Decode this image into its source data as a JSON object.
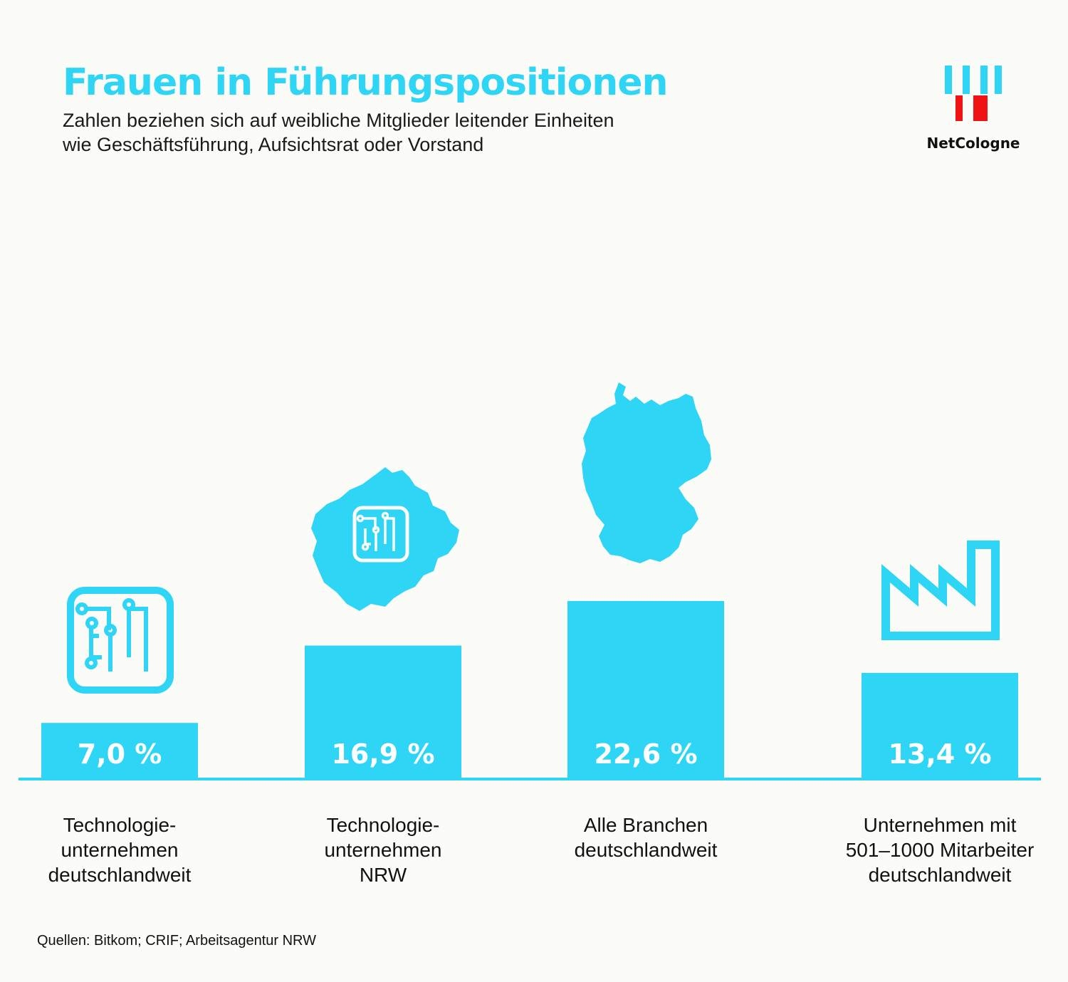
{
  "header": {
    "title": "Frauen in Führungspositionen",
    "subtitle_line1": "Zahlen beziehen sich auf weibliche Mitglieder leitender Einheiten",
    "subtitle_line2": "wie Geschäftsführung, Aufsichtsrat oder Vorstand"
  },
  "logo": {
    "text": "NetCologne",
    "icon": "netcologne-logo-icon"
  },
  "colors": {
    "accent": "#2ed5f5",
    "logo_red": "#f01414",
    "background": "#fbfbf8"
  },
  "chart_data": {
    "type": "bar",
    "title": "Frauen in Führungspositionen",
    "categories": [
      "Technologie- unternehmen deutschlandweit",
      "Technologie- unternehmen NRW",
      "Alle Branchen deutschlandweit",
      "Unternehmen mit 501–1000 Mitarbeiter deutschlandweit"
    ],
    "category_lines": [
      [
        "Technologie-",
        "unternehmen",
        "deutschlandweit"
      ],
      [
        "Technologie-",
        "unternehmen",
        "NRW"
      ],
      [
        "Alle Branchen",
        "deutschlandweit"
      ],
      [
        "Unternehmen mit",
        "501–1000 Mitarbeiter",
        "deutschlandweit"
      ]
    ],
    "values": [
      7.0,
      16.9,
      22.6,
      13.4
    ],
    "value_labels": [
      "7,0 %",
      "16,9 %",
      "22,6 %",
      "13,4 %"
    ],
    "unit": "%",
    "icons": [
      "circuit-chip-icon",
      "nrw-map-chip-icon",
      "germany-map-icon",
      "factory-icon"
    ],
    "grid": false,
    "legend": "none"
  },
  "footer": {
    "source": "Quellen: Bitkom; CRIF; Arbeitsagentur NRW"
  }
}
